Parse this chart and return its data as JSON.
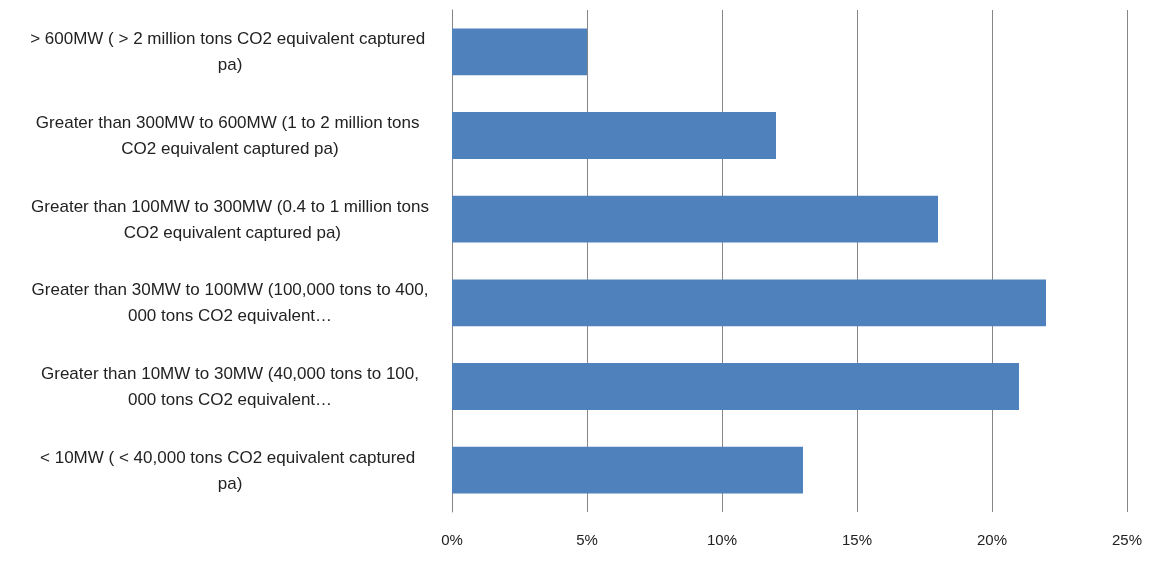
{
  "chart_data": {
    "type": "bar",
    "orientation": "horizontal",
    "categories": [
      "> 600MW ( > 2 million tons CO2 equivalent captured pa)",
      "Greater than 300MW to 600MW (1 to 2 million tons CO2 equivalent captured pa)",
      "Greater than 100MW to 300MW (0.4 to 1 million tons CO2 equivalent captured pa)",
      "Greater than 30MW to 100MW (100,000 tons to 400,000 tons CO2 equivalent…",
      "Greater than 10MW to 30MW (40,000 tons to 100,000 tons CO2 equivalent…",
      "< 10MW ( < 40,000 tons CO2 equivalent captured pa)"
    ],
    "values": [
      5,
      12,
      18,
      22,
      21,
      13
    ],
    "color": "#4f81bd",
    "xlim": [
      0,
      25
    ],
    "xticks": [
      {
        "value": 0,
        "label": "0%"
      },
      {
        "value": 5,
        "label": "5%"
      },
      {
        "value": 10,
        "label": "10%"
      },
      {
        "value": 15,
        "label": "15%"
      },
      {
        "value": 20,
        "label": "20%"
      },
      {
        "value": 25,
        "label": "25%"
      }
    ],
    "grid": "x"
  }
}
